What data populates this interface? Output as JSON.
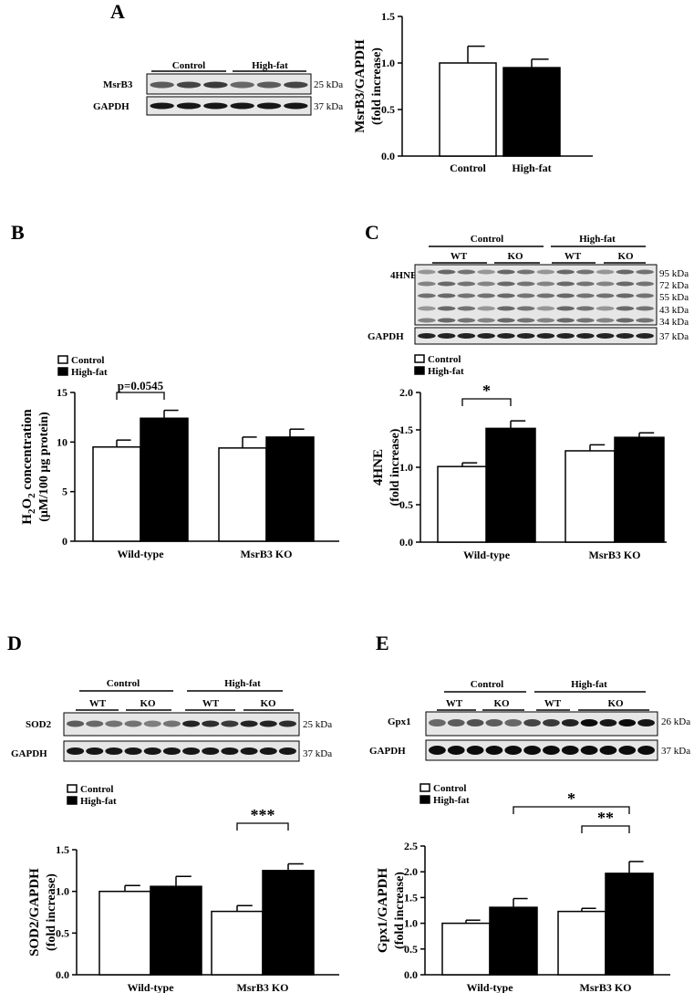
{
  "panels": {
    "A": "A",
    "B": "B",
    "C": "C",
    "D": "D",
    "E": "E"
  },
  "blots": {
    "A": {
      "groups": [
        "Control",
        "High-fat"
      ],
      "rows": [
        "MsrB3",
        "GAPDH"
      ],
      "sizes": [
        "25 kDa",
        "37 kDa"
      ]
    },
    "C": {
      "groups": [
        "Control",
        "High-fat"
      ],
      "subgroups": [
        "WT",
        "KO",
        "WT",
        "KO"
      ],
      "rows": [
        "4HNE",
        "GAPDH"
      ],
      "sizes": [
        "95 kDa",
        "72 kDa",
        "55 kDa",
        "43 kDa",
        "34 kDa",
        "37 kDa"
      ]
    },
    "D": {
      "groups": [
        "Control",
        "High-fat"
      ],
      "subgroups": [
        "WT",
        "KO",
        "WT",
        "KO"
      ],
      "rows": [
        "SOD2",
        "GAPDH"
      ],
      "sizes": [
        "25 kDa",
        "37 kDa"
      ]
    },
    "E": {
      "groups": [
        "Control",
        "High-fat"
      ],
      "subgroups": [
        "WT",
        "KO",
        "WT",
        "KO"
      ],
      "rows": [
        "Gpx1",
        "GAPDH"
      ],
      "sizes": [
        "26 kDa",
        "37 kDa"
      ]
    }
  },
  "legend": {
    "control": "Control",
    "highfat": "High-fat"
  },
  "chart_data": [
    {
      "id": "A",
      "type": "bar",
      "categories": [
        "Control",
        "High-fat"
      ],
      "values": [
        1.0,
        0.95
      ],
      "errors": [
        0.18,
        0.09
      ],
      "ylabel": "MsrB3/GAPDH",
      "ylabel2": "(fold increase)",
      "ylim": [
        0,
        1.5
      ],
      "yticks": [
        "0.0",
        "0.5",
        "1.0",
        "1.5"
      ]
    },
    {
      "id": "B",
      "type": "bar",
      "categories": [
        "Wild-type",
        "MsrB3 KO"
      ],
      "series": [
        {
          "name": "Control",
          "values": [
            9.5,
            9.4
          ],
          "errors": [
            0.7,
            1.1
          ]
        },
        {
          "name": "High-fat",
          "values": [
            12.4,
            10.5
          ],
          "errors": [
            0.8,
            0.8
          ]
        }
      ],
      "ylabel": "H2O2 concentration",
      "ylabel2": "(μM/100 μg protein)",
      "ylim": [
        0,
        15
      ],
      "yticks": [
        "0",
        "5",
        "10",
        "15"
      ],
      "annotation": "p=0.0545"
    },
    {
      "id": "C",
      "type": "bar",
      "categories": [
        "Wild-type",
        "MsrB3 KO"
      ],
      "series": [
        {
          "name": "Control",
          "values": [
            1.01,
            1.22
          ],
          "errors": [
            0.05,
            0.08
          ]
        },
        {
          "name": "High-fat",
          "values": [
            1.52,
            1.4
          ],
          "errors": [
            0.1,
            0.06
          ]
        }
      ],
      "ylabel": "4HNE",
      "ylabel2": "(fold increase)",
      "ylim": [
        0,
        2.0
      ],
      "yticks": [
        "0.0",
        "0.5",
        "1.0",
        "1.5",
        "2.0"
      ],
      "annotation": "*"
    },
    {
      "id": "D",
      "type": "bar",
      "categories": [
        "Wild-type",
        "MsrB3 KO"
      ],
      "series": [
        {
          "name": "Control",
          "values": [
            1.0,
            0.76
          ],
          "errors": [
            0.07,
            0.07
          ]
        },
        {
          "name": "High-fat",
          "values": [
            1.06,
            1.25
          ],
          "errors": [
            0.12,
            0.08
          ]
        }
      ],
      "ylabel": "SOD2/GAPDH",
      "ylabel2": "(fold increase)",
      "ylim": [
        0,
        1.5
      ],
      "yticks": [
        "0.0",
        "0.5",
        "1.0",
        "1.5"
      ],
      "annotation": "***"
    },
    {
      "id": "E",
      "type": "bar",
      "categories": [
        "Wild-type",
        "MsrB3 KO"
      ],
      "series": [
        {
          "name": "Control",
          "values": [
            1.0,
            1.23
          ],
          "errors": [
            0.06,
            0.06
          ]
        },
        {
          "name": "High-fat",
          "values": [
            1.31,
            1.97
          ],
          "errors": [
            0.17,
            0.23
          ]
        }
      ],
      "ylabel": "Gpx1/GAPDH",
      "ylabel2": "(fold increase)",
      "ylim": [
        0,
        2.5
      ],
      "yticks": [
        "0.0",
        "0.5",
        "1.0",
        "1.5",
        "2.0",
        "2.5"
      ],
      "annotations": [
        "*",
        "**"
      ]
    }
  ]
}
